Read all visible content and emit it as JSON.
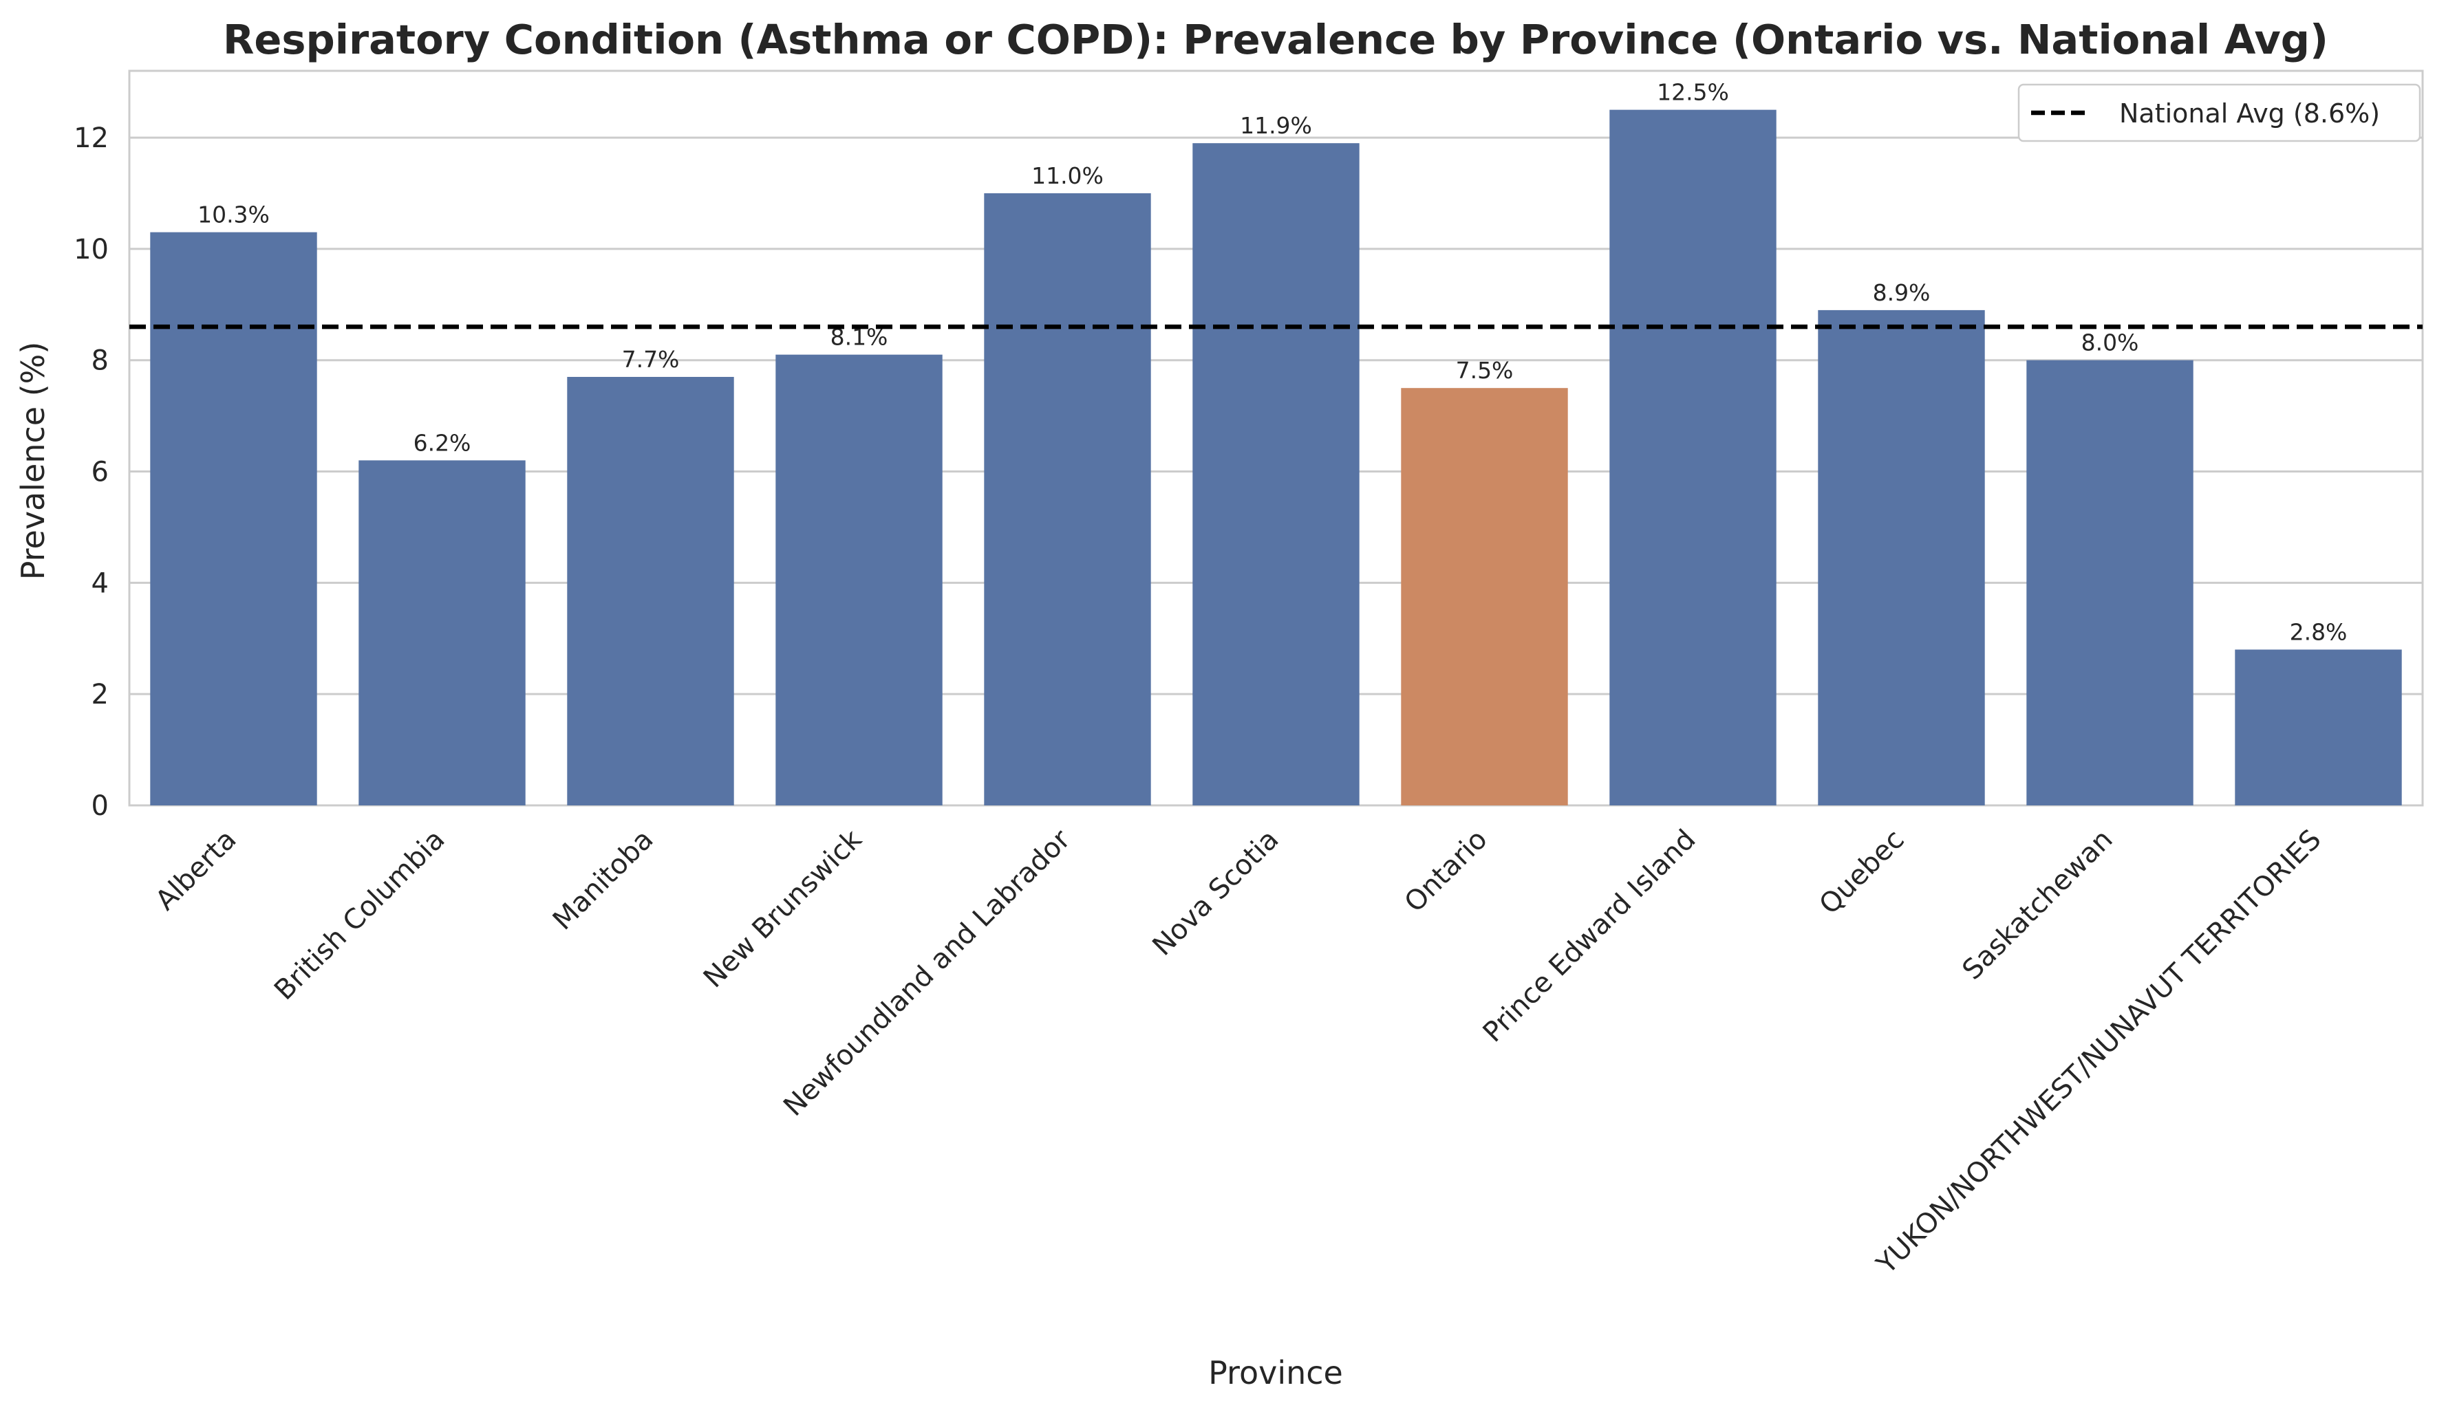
{
  "chart_data": {
    "type": "bar",
    "title": "Respiratory Condition (Asthma or COPD): Prevalence by Province (Ontario vs. National Avg)",
    "xlabel": "Province",
    "ylabel": "Prevalence (%)",
    "categories": [
      "Alberta",
      "British Columbia",
      "Manitoba",
      "New Brunswick",
      "Newfoundland and Labrador",
      "Nova Scotia",
      "Ontario",
      "Prince Edward Island",
      "Quebec",
      "Saskatchewan",
      "YUKON/NORTHWEST/NUNAVUT TERRITORIES"
    ],
    "values": [
      10.3,
      6.2,
      7.7,
      8.1,
      11.0,
      11.9,
      7.5,
      12.5,
      8.9,
      8.0,
      2.8
    ],
    "value_labels": [
      "10.3%",
      "6.2%",
      "7.7%",
      "8.1%",
      "11.0%",
      "11.9%",
      "7.5%",
      "12.5%",
      "8.9%",
      "8.0%",
      "2.8%"
    ],
    "highlight_category": "Ontario",
    "colors": {
      "bar": "#5874a4",
      "highlight": "#cc8963",
      "reference_line": "#000000",
      "grid": "#cccccc",
      "frame": "#cccccc",
      "text": "#262626"
    },
    "reference_line": {
      "label": "National Avg (8.6%)",
      "value": 8.6,
      "style": "dashed"
    },
    "ylim": [
      0,
      13.2
    ],
    "yticks": [
      0,
      2,
      4,
      6,
      8,
      10,
      12
    ],
    "grid": "y",
    "legend_position": "top-right"
  }
}
